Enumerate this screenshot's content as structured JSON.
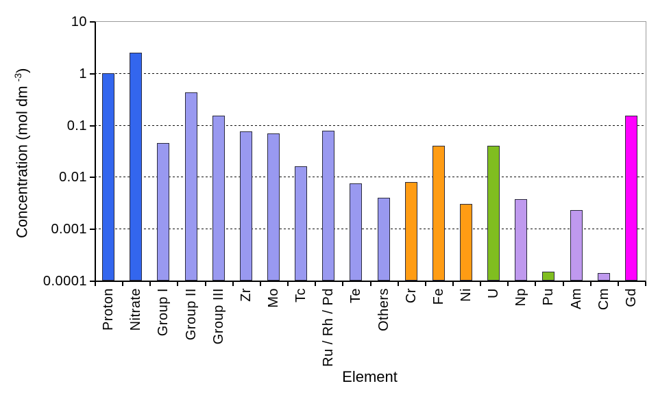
{
  "chart_data": {
    "type": "bar",
    "title": "",
    "xlabel": "Element",
    "ylabel": "Concentration (mol dm^-3)",
    "ylabel_parts": {
      "prefix": "Concentration (mol dm ",
      "superscript": "-3",
      "suffix": ")"
    },
    "y_scale": "log",
    "ylim": [
      0.0001,
      10
    ],
    "grid": "horizontal-dashed-per-decade",
    "legend": "none",
    "y_ticks": [
      {
        "label": "10",
        "value": 10
      },
      {
        "label": "1",
        "value": 1
      },
      {
        "label": "0.1",
        "value": 0.1
      },
      {
        "label": "0.01",
        "value": 0.01
      },
      {
        "label": "0.001",
        "value": 0.001
      },
      {
        "label": "0.0001",
        "value": 0.0001
      }
    ],
    "categories": [
      "Proton",
      "Nitrate",
      "Group I",
      "Group II",
      "Group III",
      "Zr",
      "Mo",
      "Tc",
      "Ru / Rh / Pd",
      "Te",
      "Others",
      "Cr",
      "Fe",
      "Ni",
      "U",
      "Np",
      "Pu",
      "Am",
      "Cm",
      "Gd"
    ],
    "bars": [
      {
        "label": "Proton",
        "value": 1.0,
        "color": "blue"
      },
      {
        "label": "Nitrate",
        "value": 2.5,
        "color": "blue"
      },
      {
        "label": "Group I",
        "value": 0.045,
        "color": "periwinkle"
      },
      {
        "label": "Group II",
        "value": 0.42,
        "color": "periwinkle"
      },
      {
        "label": "Group III",
        "value": 0.15,
        "color": "periwinkle"
      },
      {
        "label": "Zr",
        "value": 0.075,
        "color": "periwinkle"
      },
      {
        "label": "Mo",
        "value": 0.068,
        "color": "periwinkle"
      },
      {
        "label": "Tc",
        "value": 0.016,
        "color": "periwinkle"
      },
      {
        "label": "Ru / Rh / Pd",
        "value": 0.078,
        "color": "periwinkle"
      },
      {
        "label": "Te",
        "value": 0.0075,
        "color": "periwinkle"
      },
      {
        "label": "Others",
        "value": 0.004,
        "color": "periwinkle"
      },
      {
        "label": "Cr",
        "value": 0.008,
        "color": "orange"
      },
      {
        "label": "Fe",
        "value": 0.04,
        "color": "orange"
      },
      {
        "label": "Ni",
        "value": 0.003,
        "color": "orange"
      },
      {
        "label": "U",
        "value": 0.04,
        "color": "green"
      },
      {
        "label": "Np",
        "value": 0.0037,
        "color": "purple"
      },
      {
        "label": "Pu",
        "value": 0.00015,
        "color": "green"
      },
      {
        "label": "Am",
        "value": 0.0023,
        "color": "purple"
      },
      {
        "label": "Cm",
        "value": 0.00014,
        "color": "purple"
      },
      {
        "label": "Gd",
        "value": 0.15,
        "color": "magenta"
      }
    ],
    "palette": {
      "blue": "#3366EE",
      "periwinkle": "#9999F0",
      "orange": "#FF9C14",
      "green": "#80BE20",
      "purple": "#BF99EE",
      "magenta": "#FF00FF"
    },
    "bar_border_color": "#2b2b3d",
    "axis_color": "#000000",
    "frame_color": "#9a9a9a",
    "background_color": "#ffffff"
  }
}
